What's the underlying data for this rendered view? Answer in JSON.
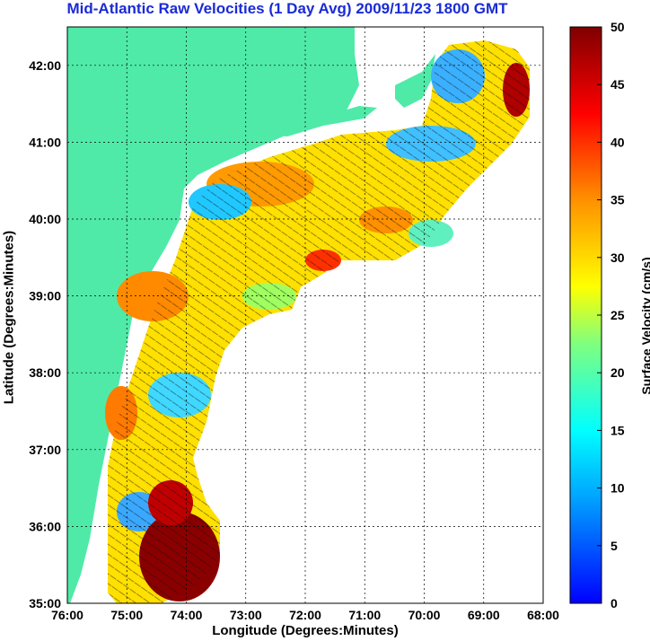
{
  "title": "Mid-Atlantic Raw Velocities (1 Day Avg) 2009/11/23 1800 GMT",
  "x_axis": {
    "label": "Longitude (Degrees:Minutes)",
    "ticks": [
      "76:00",
      "75:00",
      "74:00",
      "73:00",
      "72:00",
      "71:00",
      "70:00",
      "69:00",
      "68:00"
    ]
  },
  "y_axis": {
    "label": "Latitude (Degrees:Minutes)",
    "ticks": [
      "35:00",
      "36:00",
      "37:00",
      "38:00",
      "39:00",
      "40:00",
      "41:00",
      "42:00"
    ]
  },
  "colorbar": {
    "label": "Surface Velocity (cm/s)",
    "min": 0,
    "max": 50,
    "ticks": [
      "0",
      "5",
      "10",
      "15",
      "20",
      "25",
      "30",
      "35",
      "40",
      "45",
      "50"
    ],
    "colors": [
      "#0000ff",
      "#00ffff",
      "#ffff00",
      "#ff0000",
      "#800000"
    ]
  },
  "map": {
    "land_color": "#4feaa8",
    "water_color": "#ffffff",
    "grid": true,
    "lon_range": [
      -76,
      -68
    ],
    "lat_range": [
      35,
      42.5
    ]
  }
}
